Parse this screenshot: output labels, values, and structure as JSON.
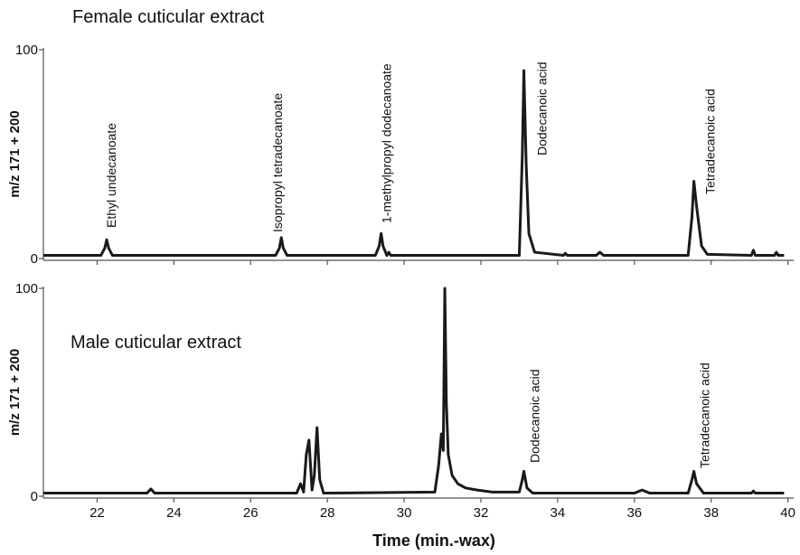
{
  "chart_data": [
    {
      "type": "line",
      "title": "Female cuticular extract",
      "ylabel": "m/z 171 + 200",
      "color": "#1a1a1a",
      "xlim": [
        20.6,
        40.15
      ],
      "ylim": [
        0,
        100
      ],
      "yticks": [
        0,
        100
      ],
      "x": [
        20.6,
        22.1,
        22.2,
        22.25,
        22.3,
        22.4,
        26.65,
        26.75,
        26.8,
        26.85,
        26.95,
        29.25,
        29.35,
        29.4,
        29.45,
        29.55,
        29.6,
        29.65,
        33.0,
        33.08,
        33.12,
        33.18,
        33.25,
        33.4,
        34.15,
        34.2,
        34.25,
        35.0,
        35.1,
        35.2,
        37.4,
        37.5,
        37.55,
        37.62,
        37.75,
        37.9,
        39.05,
        39.1,
        39.15,
        39.65,
        39.7,
        39.75,
        39.9
      ],
      "values": [
        1.5,
        1.5,
        5,
        9,
        5,
        1.5,
        1.5,
        5,
        10,
        5,
        1.5,
        1.5,
        6,
        12,
        6,
        1.5,
        3,
        1.5,
        1.5,
        50,
        90,
        45,
        12,
        3,
        1.5,
        2.5,
        1.5,
        1.5,
        3,
        1.5,
        1.5,
        20,
        37,
        25,
        6,
        2,
        1.5,
        4,
        1.5,
        1.5,
        3,
        1.5,
        1.5
      ],
      "annotations": [
        {
          "text": "Ethyl undecanoate",
          "x": 22.25
        },
        {
          "text": "Isopropyl tetradecanoate",
          "x": 26.8
        },
        {
          "text": "1-methylpropyl dodecanoate",
          "x": 29.4
        },
        {
          "text": "Dodecanoic acid",
          "x": 33.12
        },
        {
          "text": "Tetradecanoic acid",
          "x": 37.55
        }
      ]
    },
    {
      "type": "line",
      "title": "Male cuticular extract",
      "ylabel": "m/z 171 + 200",
      "xlabel": "Time (min.-wax)",
      "color": "#1a1a1a",
      "xlim": [
        20.6,
        40.15
      ],
      "ylim": [
        0,
        100
      ],
      "yticks": [
        0,
        100
      ],
      "xticks": [
        22,
        24,
        26,
        28,
        30,
        32,
        34,
        36,
        38,
        40
      ],
      "x": [
        20.6,
        23.3,
        23.4,
        23.5,
        27.2,
        27.3,
        27.38,
        27.45,
        27.52,
        27.6,
        27.66,
        27.73,
        27.8,
        27.9,
        30.8,
        30.9,
        30.97,
        31.02,
        31.06,
        31.1,
        31.15,
        31.25,
        31.4,
        31.6,
        31.9,
        32.3,
        33.0,
        33.08,
        33.12,
        33.2,
        33.35,
        36.0,
        36.2,
        36.4,
        37.4,
        37.5,
        37.55,
        37.62,
        37.8,
        39.05,
        39.1,
        39.15,
        39.9
      ],
      "values": [
        1.5,
        1.5,
        3.5,
        1.5,
        1.5,
        6,
        2,
        20,
        27,
        3,
        10,
        33,
        8,
        1.5,
        2,
        15,
        30,
        22,
        100,
        45,
        20,
        10,
        6,
        4,
        3,
        2,
        2,
        8,
        12,
        4,
        1.5,
        1.5,
        3,
        1.5,
        1.5,
        8,
        12,
        6,
        1.5,
        1.5,
        2.5,
        1.5,
        1.5
      ],
      "annotations": [
        {
          "text": "Dodecanoic acid",
          "x": 33.12
        },
        {
          "text": "Tetradecanoic acid",
          "x": 37.55
        }
      ]
    }
  ]
}
